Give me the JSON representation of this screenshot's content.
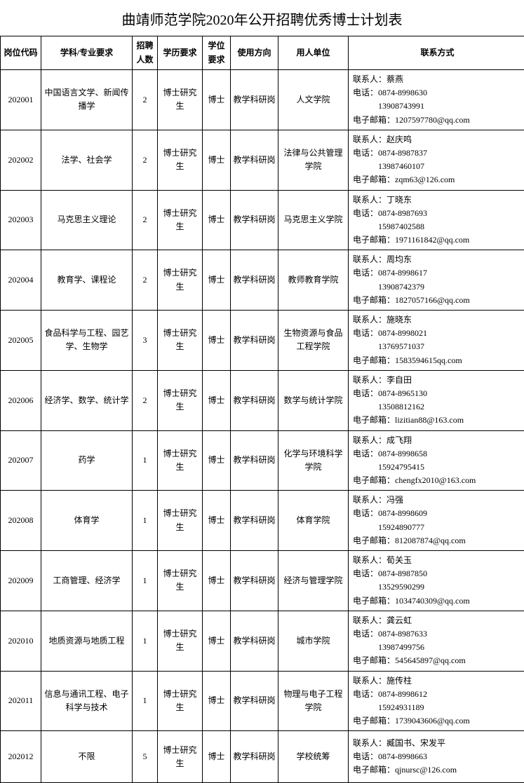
{
  "title": "曲靖师范学院2020年公开招聘优秀博士计划表",
  "columns": [
    "岗位代码",
    "学科/专业要求",
    "招聘人数",
    "学历要求",
    "学位要求",
    "使用方向",
    "用人单位",
    "联系方式"
  ],
  "labels": {
    "person": "联系人：",
    "phone": "电话：",
    "email": "电子邮箱："
  },
  "rows": [
    {
      "code": "202001",
      "subject": "中国语言文学、新闻传播学",
      "count": "2",
      "edu": "博士研究生",
      "degree": "博士",
      "use": "教学科研岗",
      "unit": "人文学院",
      "contact": {
        "person": "蔡燕",
        "phone": "0874-8998630 13908743991",
        "email": "1207597780@qq.com"
      }
    },
    {
      "code": "202002",
      "subject": "法学、社会学",
      "count": "2",
      "edu": "博士研究生",
      "degree": "博士",
      "use": "教学科研岗",
      "unit": "法律与公共管理学院",
      "contact": {
        "person": "赵庆鸣",
        "phone": "0874-8987837 13987460107",
        "email": "zqm63@126.com"
      }
    },
    {
      "code": "202003",
      "subject": "马克思主义理论",
      "count": "2",
      "edu": "博士研究生",
      "degree": "博士",
      "use": "教学科研岗",
      "unit": "马克思主义学院",
      "contact": {
        "person": "丁晓东",
        "phone": "0874-8987693 15987402588",
        "email": "1971161842@qq.com"
      }
    },
    {
      "code": "202004",
      "subject": "教育学、课程论",
      "count": "2",
      "edu": "博士研究生",
      "degree": "博士",
      "use": "教学科研岗",
      "unit": "教师教育学院",
      "contact": {
        "person": "周均东",
        "phone": "0874-8998617 13908742379",
        "email": "1827057166@qq.com"
      }
    },
    {
      "code": "202005",
      "subject": "食品科学与工程、园艺学、生物学",
      "count": "3",
      "edu": "博士研究生",
      "degree": "博士",
      "use": "教学科研岗",
      "unit": "生物资源与食品工程学院",
      "contact": {
        "person": "施晓东",
        "phone": "0874-8998021 13769571037",
        "email": "1583594615qq.com"
      }
    },
    {
      "code": "202006",
      "subject": "经济学、数学、统计学",
      "count": "2",
      "edu": "博士研究生",
      "degree": "博士",
      "use": "教学科研岗",
      "unit": "数学与统计学院",
      "contact": {
        "person": "李自田",
        "phone": "0874-8965130 13508812162",
        "email": "lizitian88@163.com"
      }
    },
    {
      "code": "202007",
      "subject": "药学",
      "count": "1",
      "edu": "博士研究生",
      "degree": "博士",
      "use": "教学科研岗",
      "unit": "化学与环境科学学院",
      "contact": {
        "person": "成飞翔",
        "phone": "0874-8998658 15924795415",
        "email": "chengfx2010@163.com"
      }
    },
    {
      "code": "202008",
      "subject": "体育学",
      "count": "1",
      "edu": "博士研究生",
      "degree": "博士",
      "use": "教学科研岗",
      "unit": "体育学院",
      "contact": {
        "person": "冯强",
        "phone": "0874-8998609 15924890777",
        "email": "812087874@qq.com"
      }
    },
    {
      "code": "202009",
      "subject": "工商管理、经济学",
      "count": "1",
      "edu": "博士研究生",
      "degree": "博士",
      "use": "教学科研岗",
      "unit": "经济与管理学院",
      "contact": {
        "person": "荀关玉",
        "phone": "0874-8987850 13529590299",
        "email": "1034740309@qq.com"
      }
    },
    {
      "code": "202010",
      "subject": "地质资源与地质工程",
      "count": "1",
      "edu": "博士研究生",
      "degree": "博士",
      "use": "教学科研岗",
      "unit": "城市学院",
      "contact": {
        "person": "龚云虹",
        "phone": "0874-8987633 13987499756",
        "email": "545645897@qq.com"
      }
    },
    {
      "code": "202011",
      "subject": "信息与通讯工程、电子科学与技术",
      "count": "1",
      "edu": "博士研究生",
      "degree": "博士",
      "use": "教学科研岗",
      "unit": "物理与电子工程学院",
      "contact": {
        "person": "施传柱",
        "phone": "0874-8998612 15924931189",
        "email": "1739043606@qq.com"
      }
    },
    {
      "code": "202012",
      "subject": "不限",
      "count": "5",
      "edu": "博士研究生",
      "degree": "博士",
      "use": "教学科研岗",
      "unit": "学校统筹",
      "contact": {
        "person": "臧国书、宋发平",
        "phone": "0874-8998663",
        "email": "qjnursc@126.com"
      }
    }
  ]
}
